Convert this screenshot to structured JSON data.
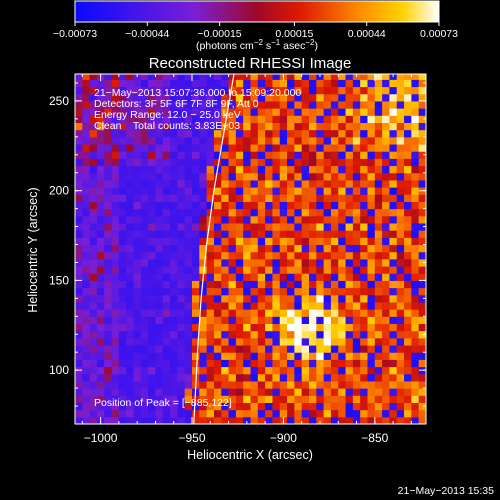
{
  "chart_data": {
    "type": "heatmap",
    "title": "Reconstructed RHESSI Image",
    "xlabel": "Heliocentric X (arcsec)",
    "ylabel": "Heliocentric Y (arcsec)",
    "xlim": [
      -1014,
      -822
    ],
    "ylim": [
      70,
      265
    ],
    "x_ticks": [
      -1000,
      -950,
      -900,
      -850
    ],
    "x_tick_labels": [
      "−1000",
      "−950",
      "−900",
      "−850"
    ],
    "y_ticks": [
      100,
      150,
      200,
      250
    ],
    "y_tick_labels": [
      "100",
      "150",
      "200",
      "250"
    ],
    "colorbar": {
      "colormap": "blue-purple-red-orange-yellow-white",
      "range": [
        -0.00073,
        0.00073
      ],
      "ticks": [
        -0.00073,
        -0.00044,
        -0.00015,
        0.00015,
        0.00044,
        0.00073
      ],
      "tick_labels": [
        "−0.00073",
        "−0.00044",
        "−0.00015",
        "0.00015",
        "0.00044",
        "0.00073"
      ],
      "unit_prefix": "(photons cm",
      "unit_exp1": "−2",
      "unit_mid": " s",
      "unit_exp2": "−1",
      "unit_mid2": " asec",
      "unit_exp3": "−2",
      "unit_suffix": ")"
    },
    "annotations": {
      "time_range": "21−May−2013 15:07:36.000 to 15:09:20.000",
      "detectors": "Detectors: 3F 5F 6F 7F 8F 9F, Att 0",
      "energy_range": "Energy Range: 12.0 − 25.0 keV",
      "clean_counts": "Clean    Total counts: 3.83E+03",
      "peak": "Position of Peak = [−885,122]"
    },
    "peak_position": [
      -885,
      122
    ],
    "limb_curve": [
      [
        -927,
        265
      ],
      [
        -933,
        230
      ],
      [
        -938,
        200
      ],
      [
        -942,
        170
      ],
      [
        -945,
        140
      ],
      [
        -947,
        110
      ],
      [
        -949,
        70
      ]
    ],
    "grid": false,
    "legend": "colorbar-top"
  },
  "footer": {
    "timestamp": "21−May−2013 15:35"
  }
}
